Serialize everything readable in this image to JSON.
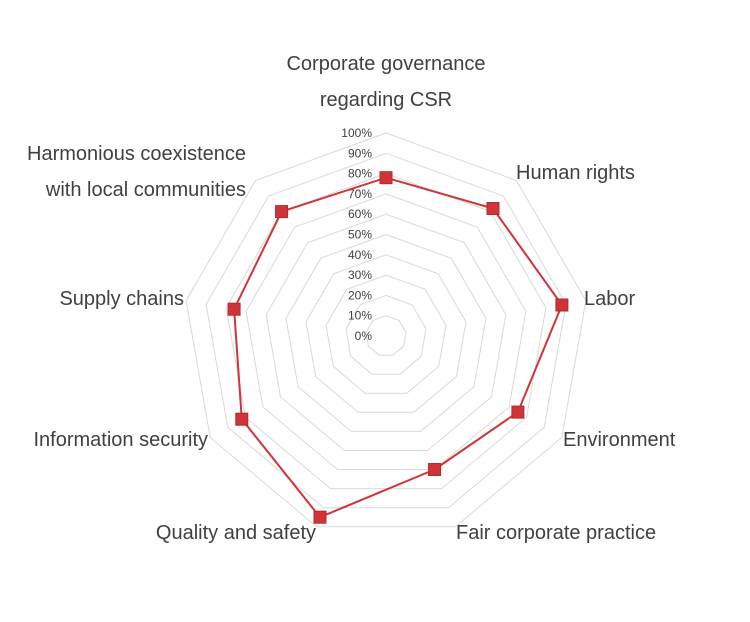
{
  "chart_data": {
    "type": "radar",
    "categories": [
      [
        "Corporate governance",
        "regarding CSR"
      ],
      [
        "Human rights"
      ],
      [
        "Labor"
      ],
      [
        "Environment"
      ],
      [
        "Fair corporate practice"
      ],
      [
        "Quality and safety"
      ],
      [
        "Information security"
      ],
      [
        "Supply chains"
      ],
      [
        "Harmonious coexistence",
        "with local communities"
      ]
    ],
    "series": [
      {
        "values": [
          78,
          82,
          88,
          75,
          70,
          95,
          82,
          76,
          80
        ]
      }
    ],
    "ticks": [
      "0%",
      "10%",
      "20%",
      "30%",
      "40%",
      "50%",
      "60%",
      "70%",
      "80%",
      "90%",
      "100%"
    ],
    "rlim": [
      0,
      100
    ],
    "grid": true,
    "legend": "none",
    "colors": {
      "series": "#d13438",
      "grid": "#d9d9d9",
      "text": "#404040"
    }
  }
}
